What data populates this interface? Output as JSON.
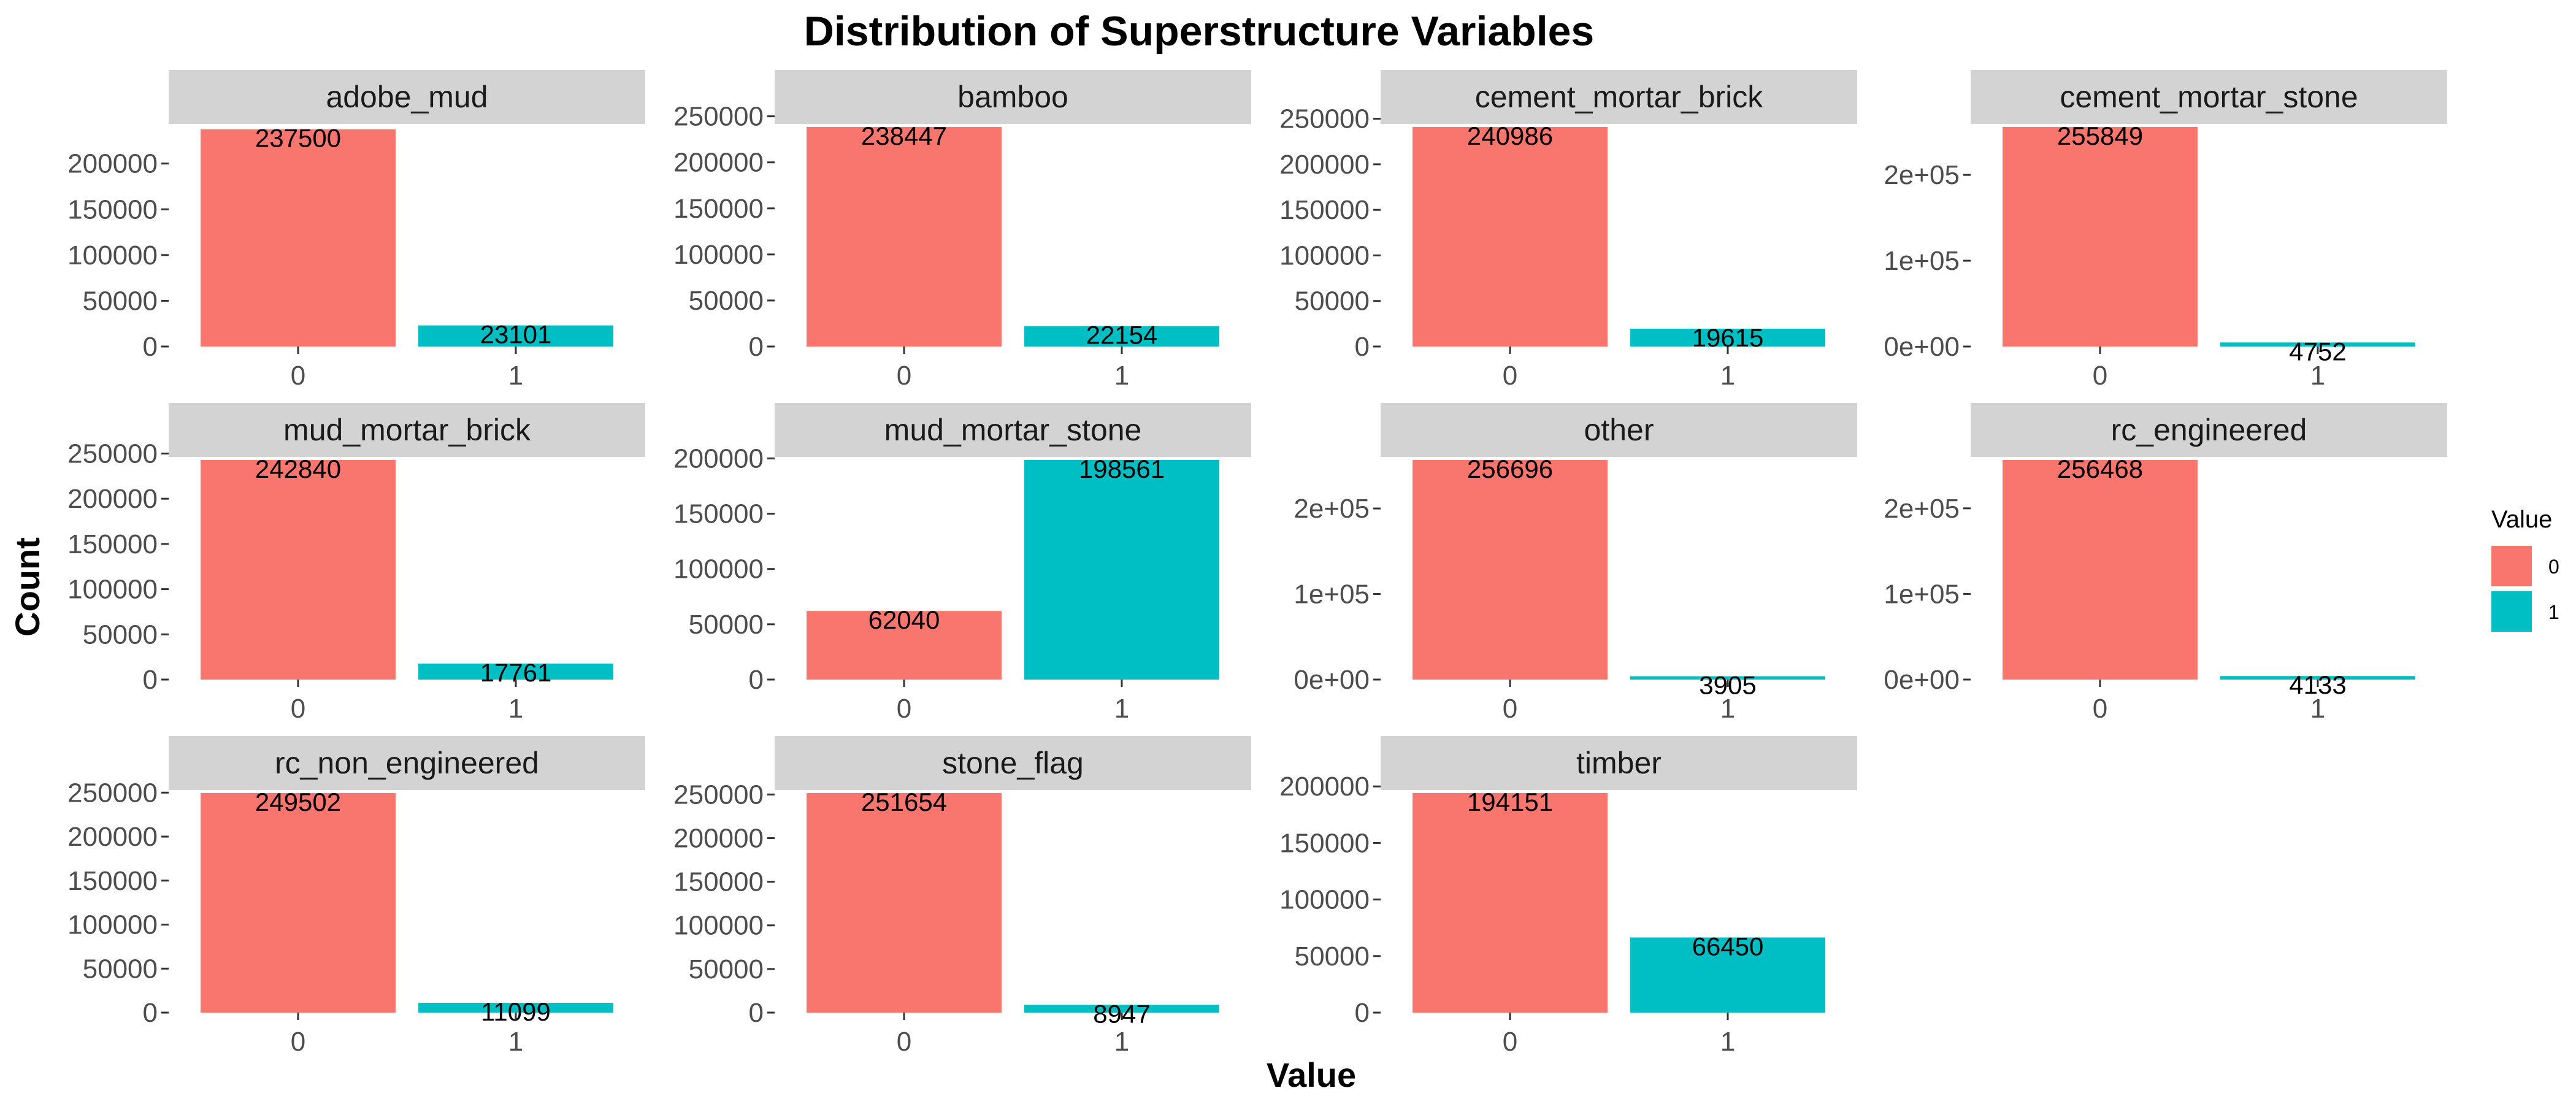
{
  "chart_data": {
    "type": "bar",
    "title": "Distribution of Superstructure Variables",
    "xlabel": "Value",
    "ylabel": "Count",
    "categories": [
      "0",
      "1"
    ],
    "legend": {
      "title": "Value",
      "position": "right",
      "entries": [
        {
          "label": "0",
          "color": "#F8766D"
        },
        {
          "label": "1",
          "color": "#00BFC4"
        }
      ]
    },
    "colors": {
      "0": "#F8766D",
      "1": "#00BFC4",
      "strip": "#d3d3d3"
    },
    "facets": [
      {
        "name": "adobe_mud",
        "values": [
          237500,
          23101
        ],
        "yticks": [
          0,
          50000,
          100000,
          150000,
          200000
        ],
        "ytick_labels": [
          "0",
          "50000",
          "100000",
          "150000",
          "200000"
        ],
        "ylim": [
          0,
          240000
        ]
      },
      {
        "name": "bamboo",
        "values": [
          238447,
          22154
        ],
        "yticks": [
          0,
          50000,
          100000,
          150000,
          200000,
          250000
        ],
        "ytick_labels": [
          "0",
          "50000",
          "100000",
          "150000",
          "200000",
          "250000"
        ],
        "ylim": [
          0,
          238447
        ]
      },
      {
        "name": "cement_mortar_brick",
        "values": [
          240986,
          19615
        ],
        "yticks": [
          0,
          50000,
          100000,
          150000,
          200000,
          250000
        ],
        "ytick_labels": [
          "0",
          "50000",
          "100000",
          "150000",
          "200000",
          "250000"
        ],
        "ylim": [
          0,
          240986
        ]
      },
      {
        "name": "cement_mortar_stone",
        "values": [
          255849,
          4752
        ],
        "yticks": [
          0,
          100000,
          200000
        ],
        "ytick_labels": [
          "0e+00",
          "1e+05",
          "2e+05"
        ],
        "ylim": [
          0,
          255849
        ]
      },
      {
        "name": "mud_mortar_brick",
        "values": [
          242840,
          17761
        ],
        "yticks": [
          0,
          50000,
          100000,
          150000,
          200000,
          250000
        ],
        "ytick_labels": [
          "0",
          "50000",
          "100000",
          "150000",
          "200000",
          "250000"
        ],
        "ylim": [
          0,
          242840
        ]
      },
      {
        "name": "mud_mortar_stone",
        "values": [
          62040,
          198561
        ],
        "yticks": [
          0,
          50000,
          100000,
          150000,
          200000
        ],
        "ytick_labels": [
          "0",
          "50000",
          "100000",
          "150000",
          "200000"
        ],
        "ylim": [
          0,
          198561
        ]
      },
      {
        "name": "other",
        "values": [
          256696,
          3905
        ],
        "yticks": [
          0,
          100000,
          200000
        ],
        "ytick_labels": [
          "0e+00",
          "1e+05",
          "2e+05"
        ],
        "ylim": [
          0,
          256696
        ]
      },
      {
        "name": "rc_engineered",
        "values": [
          256468,
          4133
        ],
        "yticks": [
          0,
          100000,
          200000
        ],
        "ytick_labels": [
          "0e+00",
          "1e+05",
          "2e+05"
        ],
        "ylim": [
          0,
          256468
        ]
      },
      {
        "name": "rc_non_engineered",
        "values": [
          249502,
          11099
        ],
        "yticks": [
          0,
          50000,
          100000,
          150000,
          200000,
          250000
        ],
        "ytick_labels": [
          "0",
          "50000",
          "100000",
          "150000",
          "200000",
          "250000"
        ],
        "ylim": [
          0,
          249502
        ]
      },
      {
        "name": "stone_flag",
        "values": [
          251654,
          8947
        ],
        "yticks": [
          0,
          50000,
          100000,
          150000,
          200000,
          250000
        ],
        "ytick_labels": [
          "0",
          "50000",
          "100000",
          "150000",
          "200000",
          "250000"
        ],
        "ylim": [
          0,
          251654
        ]
      },
      {
        "name": "timber",
        "values": [
          194151,
          66450
        ],
        "yticks": [
          0,
          50000,
          100000,
          150000,
          200000
        ],
        "ytick_labels": [
          "0",
          "50000",
          "100000",
          "150000",
          "200000"
        ],
        "ylim": [
          0,
          194151
        ]
      }
    ]
  }
}
